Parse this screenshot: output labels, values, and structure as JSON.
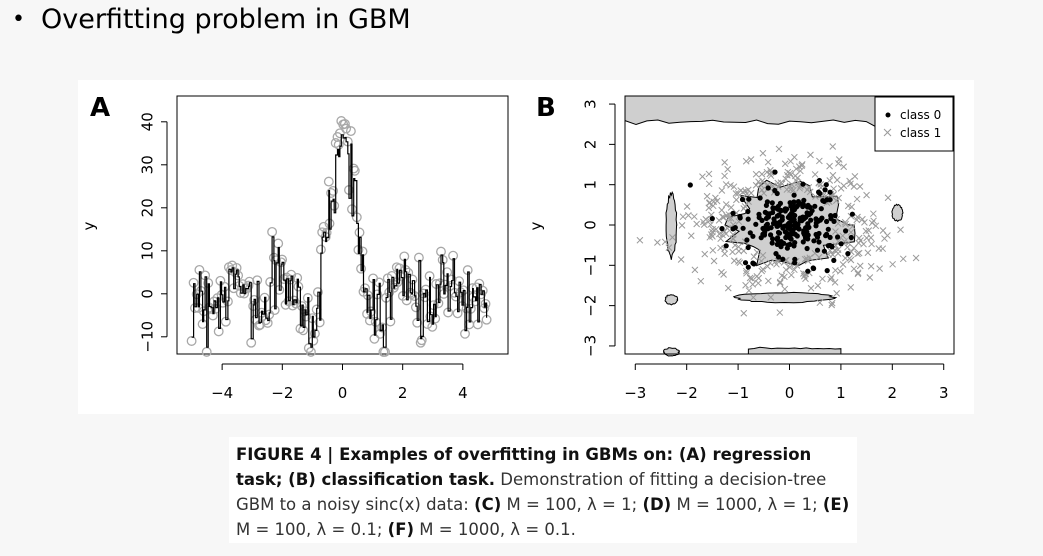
{
  "slide": {
    "bullet": "•",
    "title": "Overfitting problem in GBM"
  },
  "figure": {
    "panel_a_letter": "A",
    "panel_b_letter": "B"
  },
  "chart_data": [
    {
      "type": "line",
      "panel": "A",
      "ylabel": "y",
      "xlim": [
        -5.5,
        5.5
      ],
      "ylim": [
        -14,
        46
      ],
      "xticks": [
        "−4",
        "−2",
        "0",
        "2",
        "4"
      ],
      "xtick_values": [
        -4,
        -2,
        0,
        2,
        4
      ],
      "yticks": [
        "−10",
        "0",
        "10",
        "20",
        "30",
        "40"
      ],
      "ytick_values": [
        -10,
        0,
        10,
        20,
        30,
        40
      ],
      "series": [
        {
          "style": "hollow gray circles",
          "points_count": 200
        },
        {
          "style": "black step line fit"
        }
      ]
    },
    {
      "type": "scatter",
      "panel": "B",
      "ylabel": "y",
      "xlim": [
        -3.2,
        3.2
      ],
      "ylim": [
        -3.2,
        3.2
      ],
      "xticks": [
        "−3",
        "−2",
        "−1",
        "0",
        "1",
        "2",
        "3"
      ],
      "xtick_values": [
        -3,
        -2,
        -1,
        0,
        1,
        2,
        3
      ],
      "yticks": [
        "−3",
        "−2",
        "−1",
        "0",
        "1",
        "2",
        "3"
      ],
      "ytick_values": [
        -3,
        -2,
        -1,
        0,
        1,
        2,
        3
      ],
      "legend": {
        "position": "top-right",
        "entries": [
          "class 0",
          "class 1"
        ]
      },
      "series": [
        {
          "name": "class 0",
          "marker": "filled black circle",
          "color": "#000000"
        },
        {
          "name": "class 1",
          "marker": "gray x",
          "color": "#9a9a9a"
        }
      ]
    }
  ],
  "caption": {
    "lead_bold": "FIGURE 4 | Examples of overfitting in GBMs on: (A) regression task; (B) classification task.",
    "text1": " Demonstration of fitting a decision-tree GBM to a noisy sinc(x) data: ",
    "c_bold": "(C)",
    "c_text": " M = 100, λ = 1; ",
    "d_bold": "(D)",
    "d_text": " M = 1000, λ = 1; ",
    "e_bold": "(E)",
    "e_text": " M = 100, λ = 0.1; ",
    "f_bold": "(F)",
    "f_text": " M = 1000, λ = 0.1."
  }
}
